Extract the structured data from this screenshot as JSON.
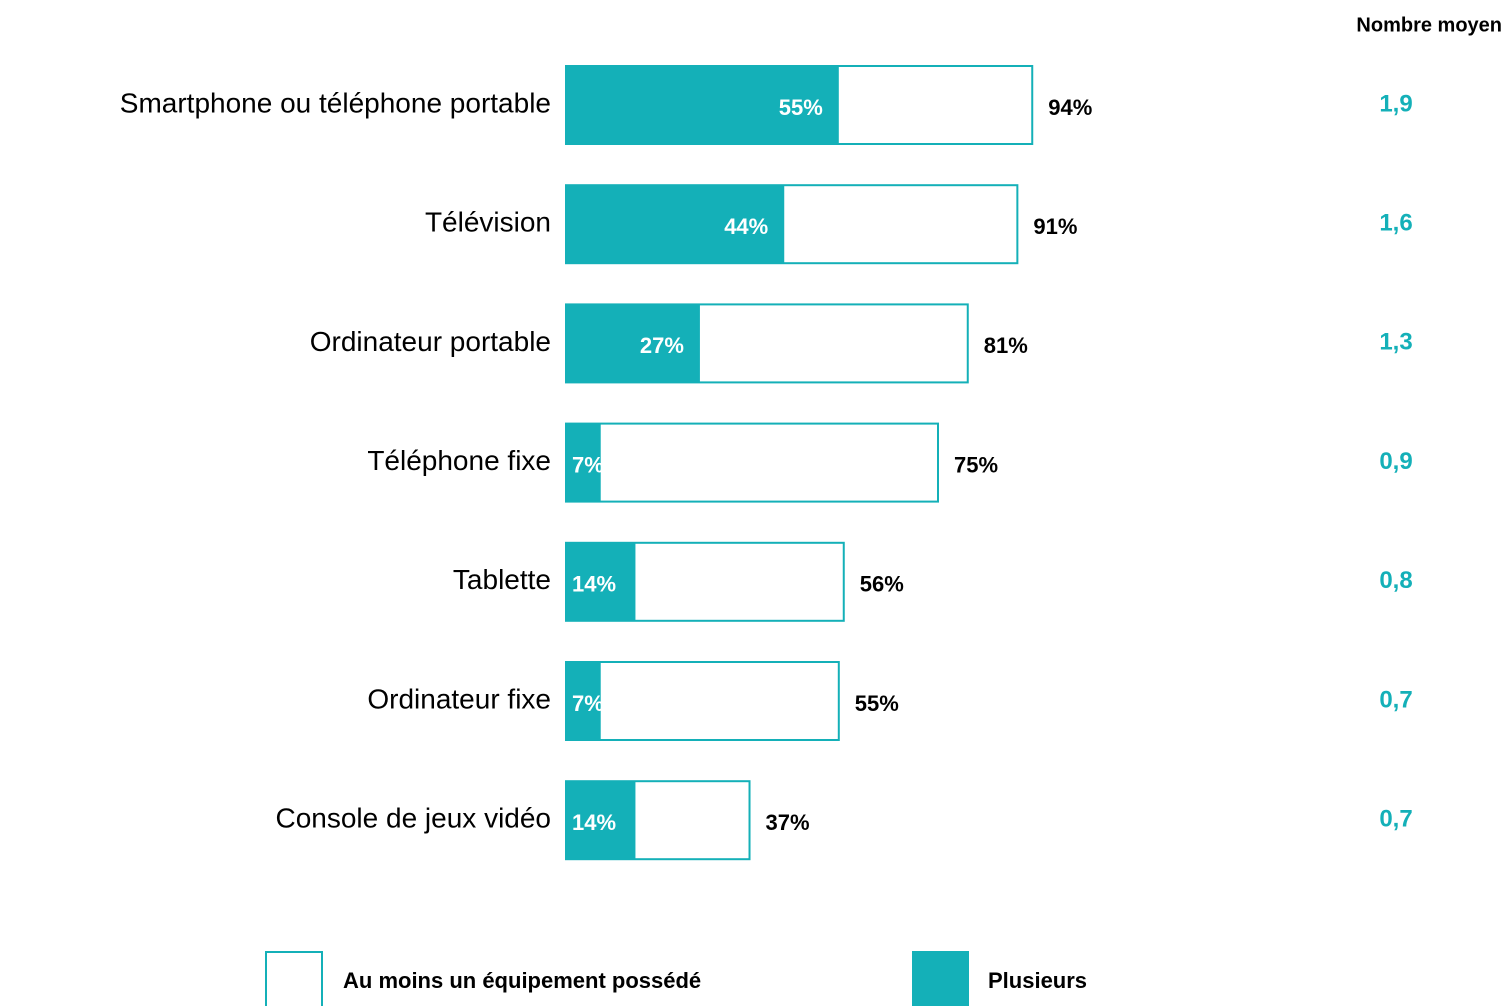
{
  "chart_data": {
    "type": "bar",
    "orientation": "horizontal",
    "categories": [
      "Smartphone ou téléphone portable",
      "Télévision",
      "Ordinateur portable",
      "Téléphone fixe",
      "Tablette",
      "Ordinateur fixe",
      "Console de jeux vidéo"
    ],
    "xlim": [
      0,
      100
    ],
    "series": [
      {
        "name": "Au moins un équipement possédé",
        "color": "#ffffff",
        "edge_color": "#14b0b8",
        "values": [
          94,
          91,
          81,
          75,
          56,
          55,
          37
        ],
        "value_labels": [
          "94%",
          "91%",
          "81%",
          "75%",
          "56%",
          "55%",
          "37%"
        ]
      },
      {
        "name": "Plusieurs",
        "color": "#14b0b8",
        "values": [
          55,
          44,
          27,
          7,
          14,
          7,
          14
        ],
        "value_labels": [
          "55%",
          "44%",
          "27%",
          "7%",
          "14%",
          "7%",
          "14%"
        ]
      }
    ],
    "average": {
      "title": "Nombre moyen",
      "color": "#14b0b8",
      "values": [
        1.9,
        1.6,
        1.3,
        0.9,
        0.8,
        0.7,
        0.7
      ],
      "value_labels": [
        "1,9",
        "1,6",
        "1,3",
        "0,9",
        "0,8",
        "0,7",
        "0,7"
      ]
    }
  }
}
